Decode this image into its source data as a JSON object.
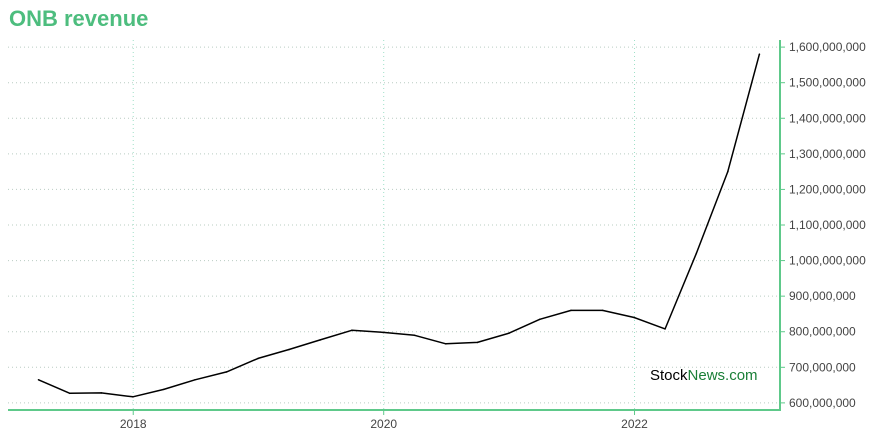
{
  "page": {
    "title": "ONB revenue"
  },
  "watermark": {
    "part1": "Stock",
    "part2": "News",
    "part3": ".com"
  },
  "colors": {
    "title": "#4dbd7e",
    "axis": "#5ec98a",
    "line": "#000000",
    "grid": "#b9ccc2",
    "vgrid": "#9fe0c8",
    "wm_green": "#1a7f37"
  },
  "chart_data": {
    "type": "line",
    "title": "ONB revenue",
    "xlabel": "",
    "ylabel": "",
    "y_axis_position": "right",
    "grid": true,
    "ylim": [
      580000000,
      1620000000
    ],
    "xlim": [
      "2017-01-01",
      "2023-03-01"
    ],
    "x_ticks": [
      {
        "date": "2018-01-01",
        "label": "2018"
      },
      {
        "date": "2020-01-01",
        "label": "2020"
      },
      {
        "date": "2022-01-01",
        "label": "2022"
      }
    ],
    "y_ticks": [
      {
        "value": 600000000,
        "label": "600,000,000"
      },
      {
        "value": 700000000,
        "label": "700,000,000"
      },
      {
        "value": 800000000,
        "label": "800,000,000"
      },
      {
        "value": 900000000,
        "label": "900,000,000"
      },
      {
        "value": 1000000000,
        "label": "1,000,000,000"
      },
      {
        "value": 1100000000,
        "label": "1,100,000,000"
      },
      {
        "value": 1200000000,
        "label": "1,200,000,000"
      },
      {
        "value": 1300000000,
        "label": "1,300,000,000"
      },
      {
        "value": 1400000000,
        "label": "1,400,000,000"
      },
      {
        "value": 1500000000,
        "label": "1,500,000,000"
      },
      {
        "value": 1600000000,
        "label": "1,600,000,000"
      }
    ],
    "series": [
      {
        "points": [
          {
            "x": "2017-03-31",
            "y": 665000000
          },
          {
            "x": "2017-06-30",
            "y": 627000000
          },
          {
            "x": "2017-09-30",
            "y": 628000000
          },
          {
            "x": "2017-12-31",
            "y": 617000000
          },
          {
            "x": "2018-03-31",
            "y": 638000000
          },
          {
            "x": "2018-06-30",
            "y": 665000000
          },
          {
            "x": "2018-09-30",
            "y": 687000000
          },
          {
            "x": "2018-12-31",
            "y": 725000000
          },
          {
            "x": "2019-03-31",
            "y": 750000000
          },
          {
            "x": "2019-06-30",
            "y": 777000000
          },
          {
            "x": "2019-09-30",
            "y": 804000000
          },
          {
            "x": "2019-12-31",
            "y": 798000000
          },
          {
            "x": "2020-03-31",
            "y": 790000000
          },
          {
            "x": "2020-06-30",
            "y": 766000000
          },
          {
            "x": "2020-09-30",
            "y": 770000000
          },
          {
            "x": "2020-12-31",
            "y": 796000000
          },
          {
            "x": "2021-03-31",
            "y": 835000000
          },
          {
            "x": "2021-06-30",
            "y": 860000000
          },
          {
            "x": "2021-09-30",
            "y": 860000000
          },
          {
            "x": "2021-12-31",
            "y": 840000000
          },
          {
            "x": "2022-03-31",
            "y": 808000000
          },
          {
            "x": "2022-06-30",
            "y": 1020000000
          },
          {
            "x": "2022-09-30",
            "y": 1250000000
          },
          {
            "x": "2022-12-31",
            "y": 1580000000
          }
        ]
      }
    ]
  }
}
